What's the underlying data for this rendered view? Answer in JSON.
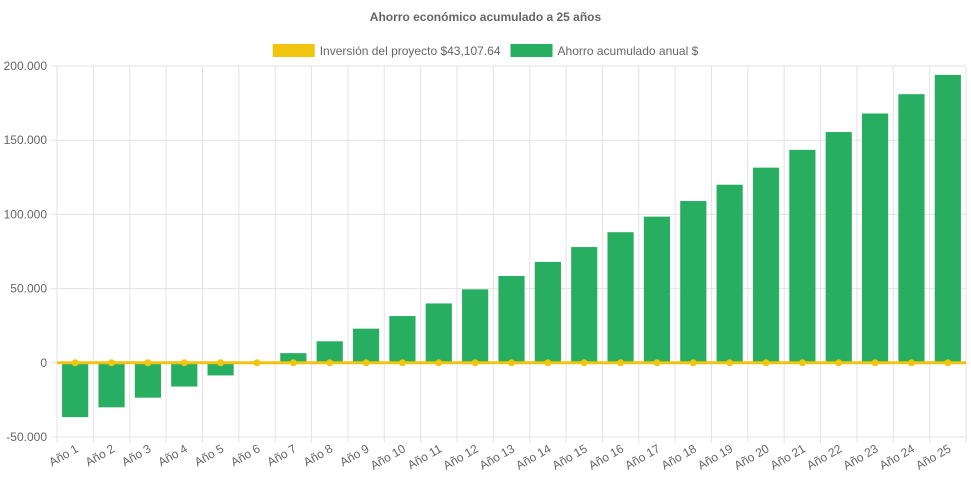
{
  "chart_data": {
    "type": "bar",
    "title": "Ahorro económico acumulado a 25 años",
    "legend_position": "top",
    "grid": true,
    "categories": [
      "Año 1",
      "Año 2",
      "Año 3",
      "Año 4",
      "Año 5",
      "Año 6",
      "Año 7",
      "Año 8",
      "Año 9",
      "Año 10",
      "Año 11",
      "Año 12",
      "Año 13",
      "Año 14",
      "Año 15",
      "Año 16",
      "Año 17",
      "Año 18",
      "Año 19",
      "Año 20",
      "Año 21",
      "Año 22",
      "Año 23",
      "Año 24",
      "Año 25"
    ],
    "ylim": [
      -50000,
      200000
    ],
    "y_ticks": [
      "-50.000",
      "0",
      "50.000",
      "100.000",
      "150.000",
      "200.000"
    ],
    "series": [
      {
        "name": "Ahorro acumulado anual $",
        "type": "bar",
        "color": "#27ae60",
        "values": [
          -36600,
          -30000,
          -23500,
          -16000,
          -8500,
          -500,
          6500,
          14500,
          23000,
          31500,
          40000,
          49500,
          58500,
          68000,
          78000,
          88000,
          98500,
          109000,
          120000,
          131500,
          143500,
          155500,
          168000,
          181000,
          194000
        ]
      },
      {
        "name": "Inversión del proyecto $43,107.64",
        "type": "line",
        "color": "#f1c40f",
        "values": [
          0,
          0,
          0,
          0,
          0,
          0,
          0,
          0,
          0,
          0,
          0,
          0,
          0,
          0,
          0,
          0,
          0,
          0,
          0,
          0,
          0,
          0,
          0,
          0,
          0
        ]
      }
    ]
  }
}
